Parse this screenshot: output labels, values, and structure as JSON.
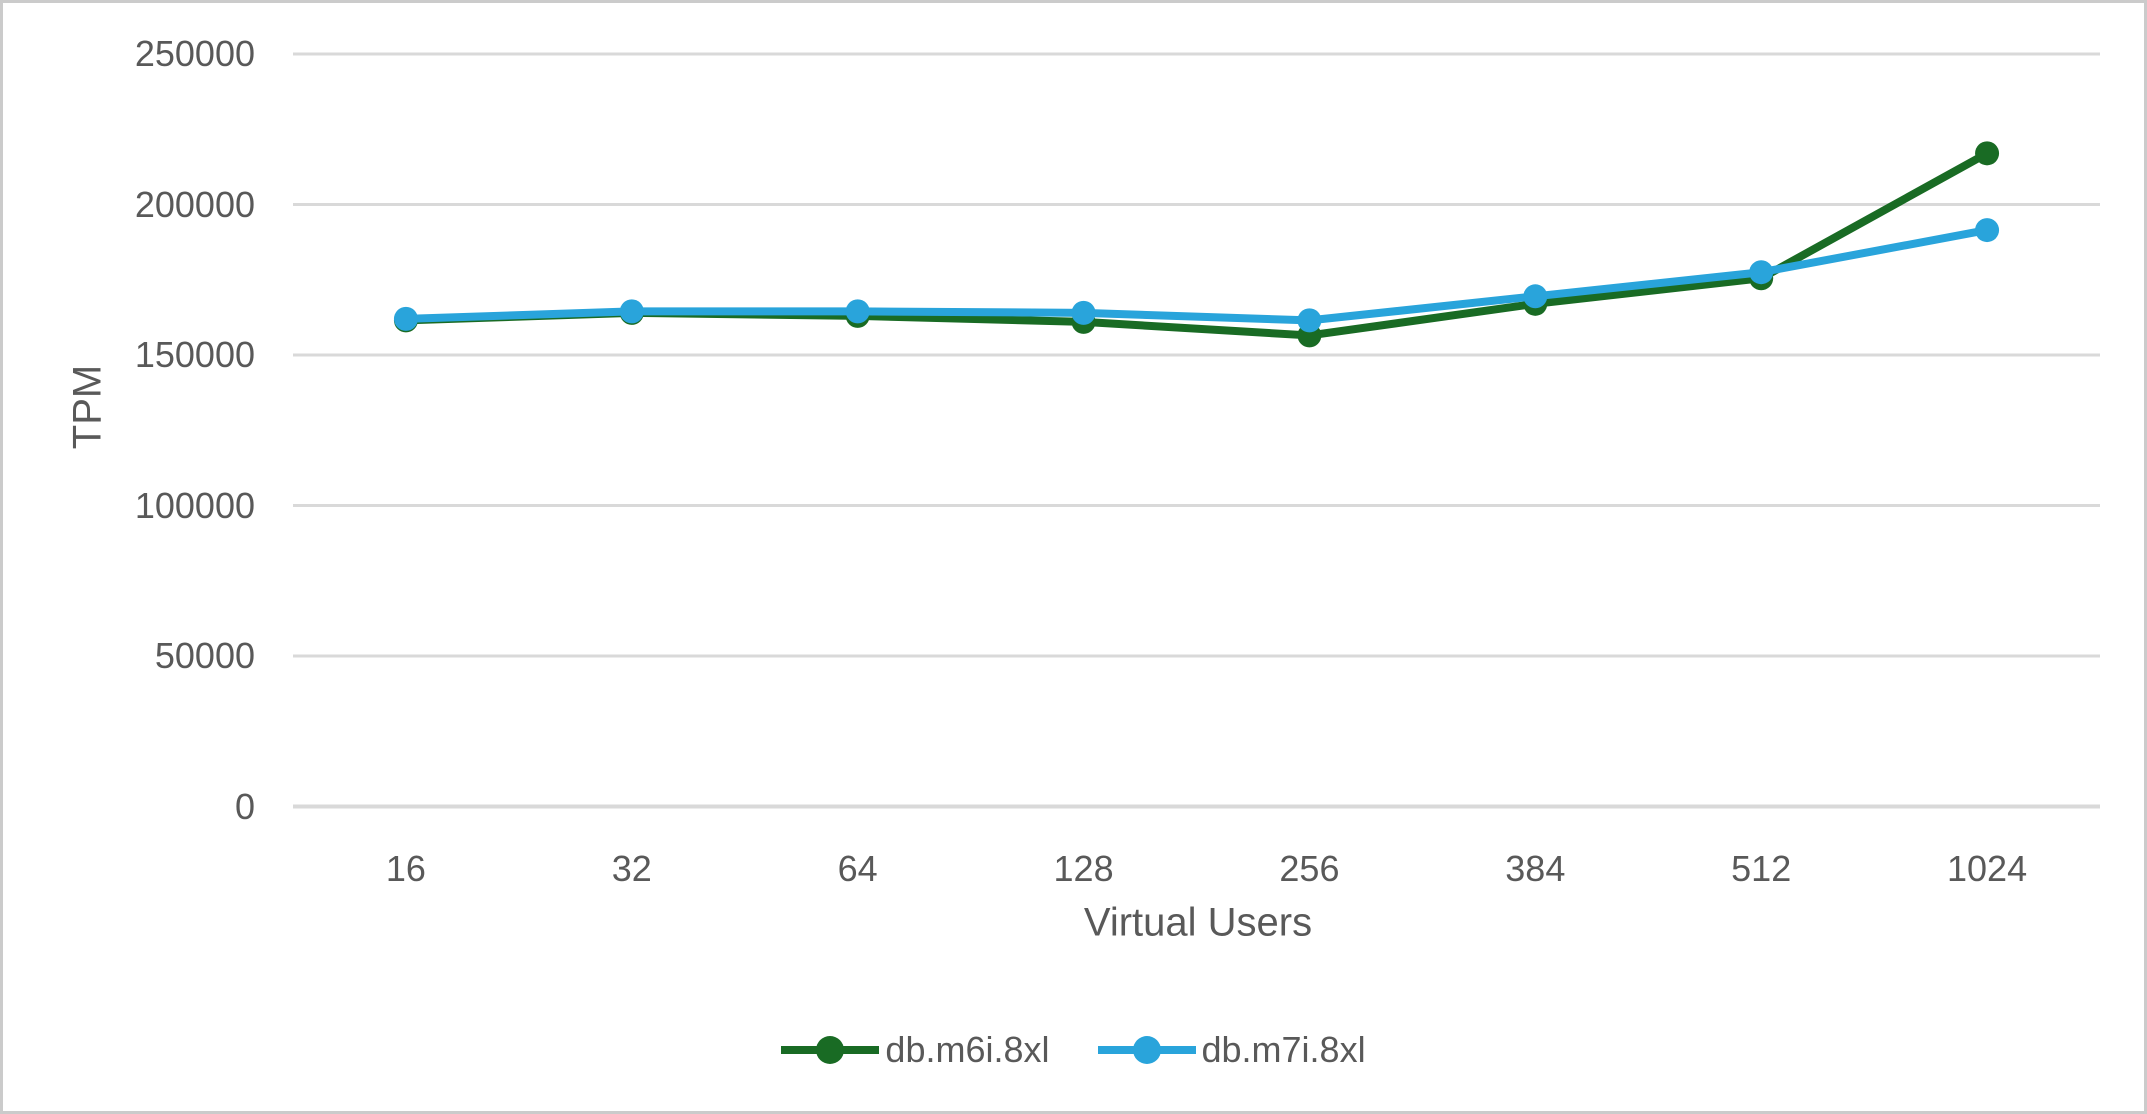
{
  "chart_data": {
    "type": "line",
    "title": "",
    "xlabel": "Virtual Users",
    "ylabel": "TPM",
    "categories": [
      "16",
      "32",
      "64",
      "128",
      "256",
      "384",
      "512",
      "1024"
    ],
    "series": [
      {
        "name": "db.m6i.8xl",
        "color": "#196B24",
        "values": [
          161500,
          164000,
          163000,
          161000,
          156500,
          167000,
          175500,
          217000
        ]
      },
      {
        "name": "db.m7i.8xl",
        "color": "#29A4DB",
        "values": [
          162000,
          164500,
          164500,
          164000,
          161500,
          169500,
          177500,
          191500
        ]
      }
    ],
    "ylim": [
      0,
      250000
    ],
    "ytick_step": 50000,
    "yticks": [
      "0",
      "50000",
      "100000",
      "150000",
      "200000",
      "250000"
    ],
    "grid": "horizontal",
    "legend_position": "bottom",
    "axis_text_color": "#595959",
    "gridline_color": "#D9D9D9",
    "marker": "circle"
  }
}
